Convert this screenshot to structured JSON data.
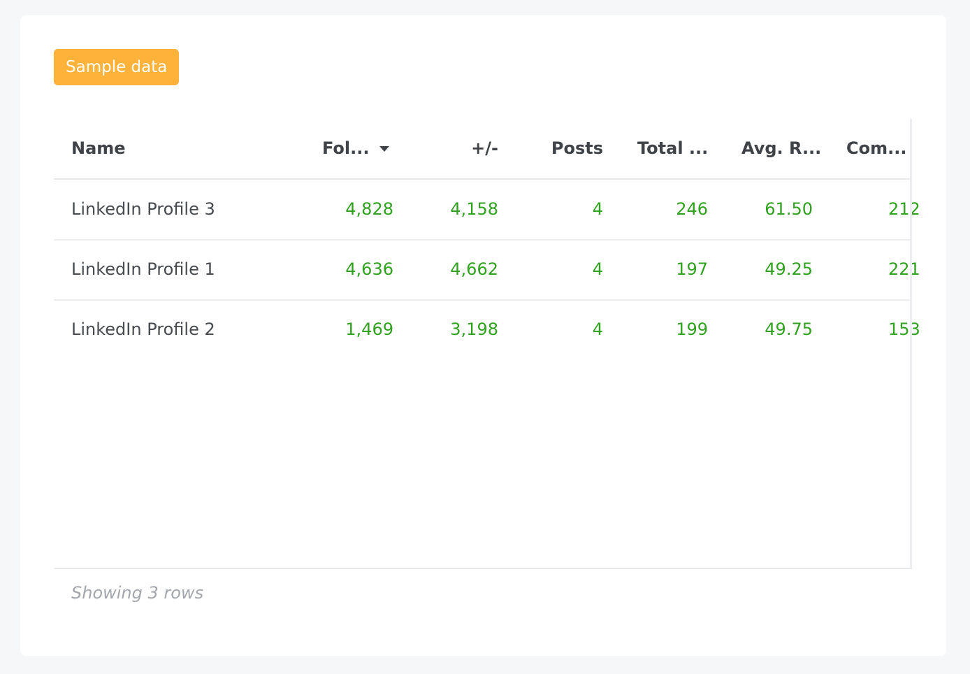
{
  "badge": {
    "label": "Sample data",
    "color": "#ffb23a"
  },
  "table": {
    "columns": [
      {
        "label": "Name"
      },
      {
        "label": "Fol...",
        "sorted": "desc"
      },
      {
        "label": "+/-"
      },
      {
        "label": "Posts"
      },
      {
        "label": "Total ..."
      },
      {
        "label": "Avg. R..."
      },
      {
        "label": "Com..."
      }
    ],
    "rows": [
      {
        "name": "LinkedIn Profile 3",
        "followers": "4,828",
        "change": "4,158",
        "posts": "4",
        "total": "246",
        "avg": "61.50",
        "com": "212"
      },
      {
        "name": "LinkedIn Profile 1",
        "followers": "4,636",
        "change": "4,662",
        "posts": "4",
        "total": "197",
        "avg": "49.25",
        "com": "221"
      },
      {
        "name": "LinkedIn Profile 2",
        "followers": "1,469",
        "change": "3,198",
        "posts": "4",
        "total": "199",
        "avg": "49.75",
        "com": "153"
      }
    ],
    "value_color": "#30a21f"
  },
  "footer": {
    "text": "Showing 3 rows"
  }
}
